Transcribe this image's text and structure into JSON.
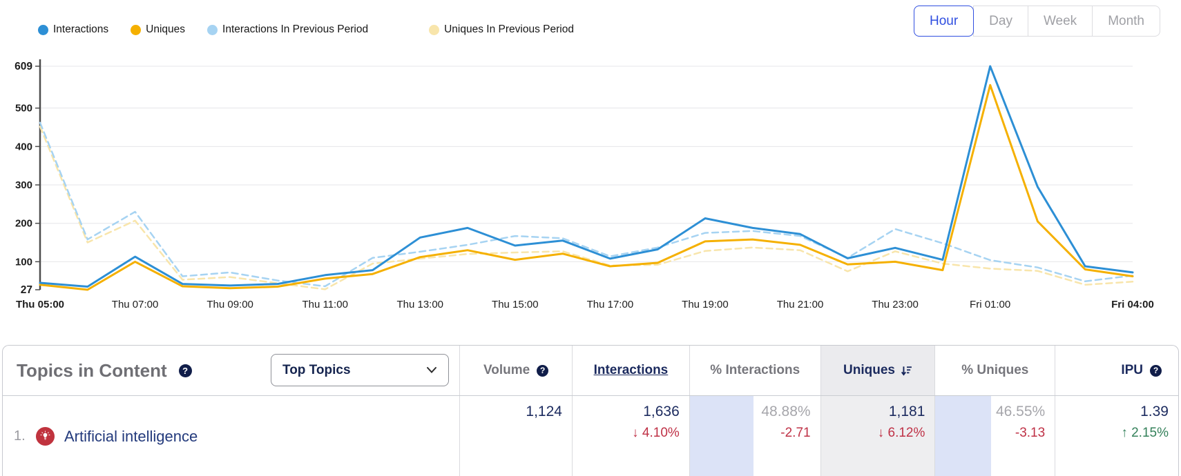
{
  "legend": {
    "items": [
      {
        "label": "Interactions",
        "color": "#2d8fd5"
      },
      {
        "label": "Uniques",
        "color": "#f5b000"
      },
      {
        "label": "Interactions In Previous Period",
        "color": "#a6d3f2"
      },
      {
        "label": "Uniques In Previous Period",
        "color": "#f8e5ab"
      }
    ]
  },
  "range_buttons": {
    "options": [
      "Hour",
      "Day",
      "Week",
      "Month"
    ],
    "selected": "Hour"
  },
  "chart_data": {
    "type": "line",
    "x": [
      "Thu 05:00",
      "Thu 06:00",
      "Thu 07:00",
      "Thu 08:00",
      "Thu 09:00",
      "Thu 10:00",
      "Thu 11:00",
      "Thu 12:00",
      "Thu 13:00",
      "Thu 14:00",
      "Thu 15:00",
      "Thu 16:00",
      "Thu 17:00",
      "Thu 18:00",
      "Thu 19:00",
      "Thu 20:00",
      "Thu 21:00",
      "Thu 22:00",
      "Thu 23:00",
      "Fri 00:00",
      "Fri 01:00",
      "Fri 02:00",
      "Fri 03:00",
      "Fri 04:00"
    ],
    "x_axis_labels": [
      {
        "label": "Thu 05:00",
        "index": 0,
        "bold": true
      },
      {
        "label": "Thu 07:00",
        "index": 2,
        "bold": false
      },
      {
        "label": "Thu 09:00",
        "index": 4,
        "bold": false
      },
      {
        "label": "Thu 11:00",
        "index": 6,
        "bold": false
      },
      {
        "label": "Thu 13:00",
        "index": 8,
        "bold": false
      },
      {
        "label": "Thu 15:00",
        "index": 10,
        "bold": false
      },
      {
        "label": "Thu 17:00",
        "index": 12,
        "bold": false
      },
      {
        "label": "Thu 19:00",
        "index": 14,
        "bold": false
      },
      {
        "label": "Thu 21:00",
        "index": 16,
        "bold": false
      },
      {
        "label": "Thu 23:00",
        "index": 18,
        "bold": false
      },
      {
        "label": "Fri 01:00",
        "index": 20,
        "bold": false
      },
      {
        "label": "Fri 04:00",
        "index": 23,
        "bold": true
      }
    ],
    "ylim": [
      27,
      609
    ],
    "yticks": [
      27,
      100,
      200,
      300,
      400,
      500,
      609
    ],
    "grid": true,
    "series": [
      {
        "name": "Uniques In Previous Period",
        "color": "#f8e5ab",
        "dashed": true,
        "values": [
          452,
          150,
          207,
          53,
          60,
          44,
          28,
          95,
          108,
          120,
          124,
          127,
          90,
          92,
          128,
          137,
          130,
          75,
          127,
          95,
          82,
          76,
          40,
          48
        ]
      },
      {
        "name": "Interactions In Previous Period",
        "color": "#a6d3f2",
        "dashed": true,
        "values": [
          462,
          158,
          230,
          62,
          72,
          51,
          36,
          110,
          126,
          144,
          167,
          161,
          114,
          137,
          175,
          180,
          167,
          110,
          185,
          148,
          104,
          85,
          49,
          64
        ]
      },
      {
        "name": "Uniques",
        "color": "#f5b000",
        "dashed": false,
        "values": [
          40,
          27,
          100,
          36,
          31,
          35,
          56,
          68,
          112,
          130,
          105,
          121,
          88,
          97,
          153,
          158,
          144,
          93,
          100,
          78,
          560,
          205,
          80,
          62
        ]
      },
      {
        "name": "Interactions",
        "color": "#2d8fd5",
        "dashed": false,
        "values": [
          45,
          35,
          113,
          42,
          38,
          42,
          65,
          78,
          163,
          188,
          142,
          155,
          108,
          132,
          213,
          188,
          172,
          109,
          136,
          105,
          609,
          295,
          88,
          72
        ]
      }
    ]
  },
  "table": {
    "title": "Topics in Content",
    "filter_dropdown": {
      "value": "Top Topics"
    },
    "columns": [
      {
        "key": "volume",
        "label": "Volume",
        "help": true,
        "dark": false
      },
      {
        "key": "interactions",
        "label": "Interactions",
        "dark": true,
        "underline": true
      },
      {
        "key": "pct_interactions",
        "label": "% Interactions",
        "dark": false
      },
      {
        "key": "uniques",
        "label": "Uniques",
        "dark": true,
        "sort": "desc",
        "shaded": true
      },
      {
        "key": "pct_uniques",
        "label": "% Uniques",
        "dark": false
      },
      {
        "key": "ipu",
        "label": "IPU",
        "help": true,
        "dark": true,
        "align_right": true
      }
    ],
    "rows": [
      {
        "rank": "1.",
        "icon": "lightbulb",
        "topic": "Artificial intelligence",
        "volume": {
          "value": "1,124"
        },
        "interactions": {
          "value": "1,636",
          "change": "4.10%",
          "direction": "down"
        },
        "pct_interactions": {
          "value": "48.88%",
          "gray": true,
          "change": "-2.71",
          "change_color": "red",
          "bar_percent": 48.88
        },
        "uniques": {
          "value": "1,181",
          "change": "6.12%",
          "direction": "down"
        },
        "pct_uniques": {
          "value": "46.55%",
          "gray": true,
          "change": "-3.13",
          "change_color": "red",
          "bar_percent": 46.55
        },
        "ipu": {
          "value": "1.39",
          "change": "2.15%",
          "direction": "up"
        }
      }
    ]
  }
}
